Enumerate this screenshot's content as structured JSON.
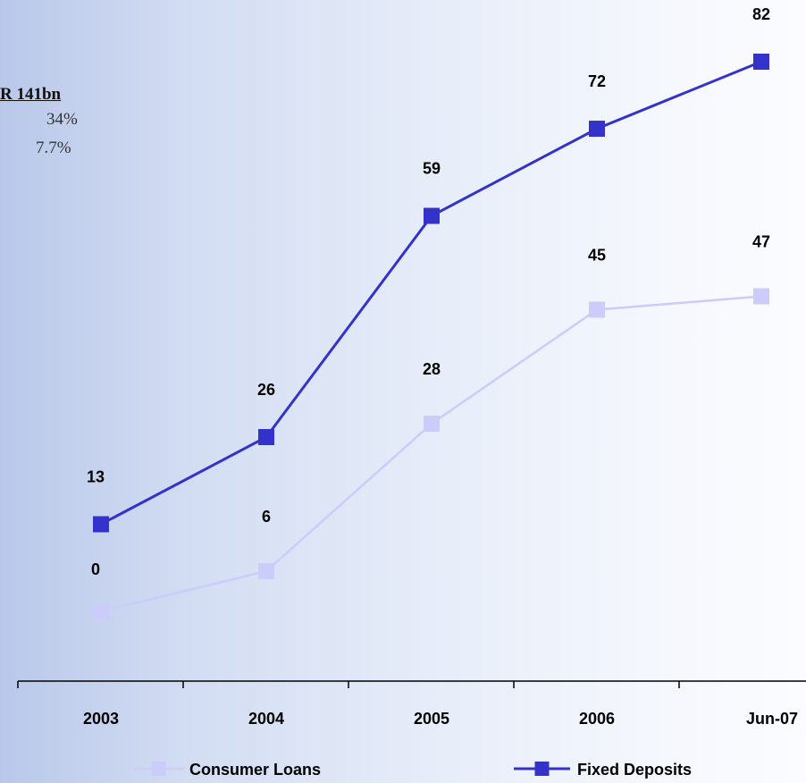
{
  "side_notes": {
    "headline": "R 141bn",
    "line1": "34%",
    "line2": "7.7%"
  },
  "chart_data": {
    "type": "line",
    "title": "",
    "xlabel": "",
    "ylabel": "",
    "categories": [
      "2003",
      "2004",
      "2005",
      "2006",
      "Jun-07"
    ],
    "ylim": [
      -5,
      90
    ],
    "grid": false,
    "legend_position": "bottom",
    "series": [
      {
        "name": "Consumer Loans",
        "values": [
          0,
          6,
          28,
          45,
          47
        ],
        "data_labels": [
          "0",
          "6",
          "28",
          "45",
          "47"
        ],
        "color": "#ccccfa",
        "marker": "square"
      },
      {
        "name": "Fixed Deposits",
        "values": [
          13,
          26,
          59,
          72,
          82
        ],
        "data_labels": [
          "13",
          "26",
          "59",
          "72",
          "82"
        ],
        "color": "#3333cc",
        "marker": "square"
      }
    ]
  }
}
